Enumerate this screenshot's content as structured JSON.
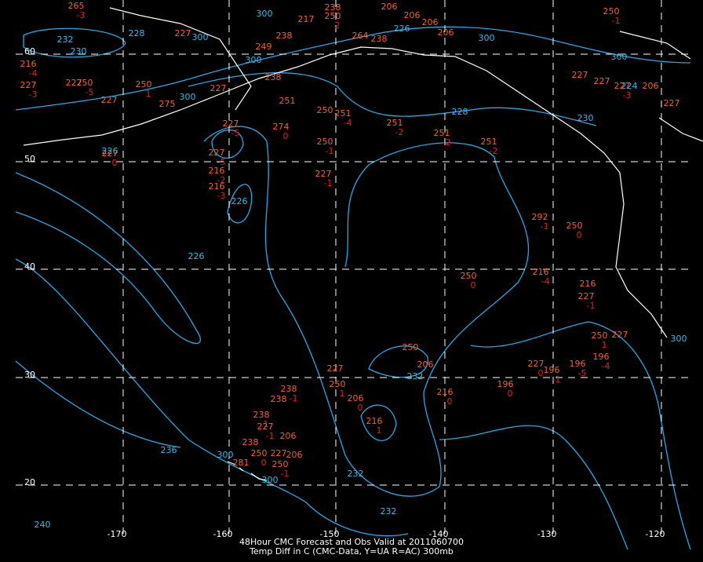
{
  "map": {
    "lon_labels": [
      -170,
      -160,
      -150,
      -140,
      -130,
      -120
    ],
    "lat_labels": [
      60,
      50,
      40,
      30,
      20
    ],
    "contour_labels": [
      232,
      230,
      228,
      226,
      226,
      226,
      228,
      230,
      232,
      232,
      232,
      236,
      240,
      226,
      224,
      300,
      300,
      300,
      300,
      300,
      300,
      300,
      300,
      300
    ],
    "stations": [
      {
        "value": "265",
        "diff": "-3"
      },
      {
        "value": "217"
      },
      {
        "value": "238"
      },
      {
        "value": "250",
        "diff": "2"
      },
      {
        "value": "206"
      },
      {
        "value": "206"
      },
      {
        "value": "206"
      },
      {
        "value": "206"
      },
      {
        "value": "250",
        "diff": "-1"
      },
      {
        "value": "227"
      },
      {
        "value": "238"
      },
      {
        "value": "249"
      },
      {
        "value": "264"
      },
      {
        "value": "238"
      },
      {
        "value": "216",
        "diff": "-4"
      },
      {
        "value": "227",
        "diff": "-3"
      },
      {
        "value": "227"
      },
      {
        "value": "250",
        "diff": "-5"
      },
      {
        "value": "250",
        "diff": "1"
      },
      {
        "value": "227"
      },
      {
        "value": "275"
      },
      {
        "value": "227"
      },
      {
        "value": "238"
      },
      {
        "value": "251"
      },
      {
        "value": "250"
      },
      {
        "value": "251",
        "diff": "-4"
      },
      {
        "value": "251",
        "diff": "-2"
      },
      {
        "value": "251",
        "diff": "-2"
      },
      {
        "value": "251",
        "diff": "-2"
      },
      {
        "value": "227",
        "diff": "-5"
      },
      {
        "value": "274",
        "diff": "0"
      },
      {
        "value": "250",
        "diff": "-1"
      },
      {
        "value": "227",
        "diff": "-1"
      },
      {
        "value": "227",
        "diff": "0"
      },
      {
        "value": "216",
        "diff": "-2"
      },
      {
        "value": "216",
        "diff": "-3"
      },
      {
        "value": "227",
        "diff": "-5"
      },
      {
        "value": "292",
        "diff": "-1"
      },
      {
        "value": "250",
        "diff": "0"
      },
      {
        "value": "250",
        "diff": "0"
      },
      {
        "value": "216",
        "diff": "-4"
      },
      {
        "value": "216"
      },
      {
        "value": "227",
        "diff": "-1"
      },
      {
        "value": "227"
      },
      {
        "value": "227"
      },
      {
        "value": "227",
        "diff": "-3"
      },
      {
        "value": "227"
      },
      {
        "value": "206"
      },
      {
        "value": "250"
      },
      {
        "value": "206"
      },
      {
        "value": "227"
      },
      {
        "value": "250",
        "diff": "1"
      },
      {
        "value": "206",
        "diff": "0"
      },
      {
        "value": "216",
        "diff": "1"
      },
      {
        "value": "216",
        "diff": "0"
      },
      {
        "value": "196",
        "diff": "0"
      },
      {
        "value": "227",
        "diff": "0"
      },
      {
        "value": "196",
        "diff": "-1"
      },
      {
        "value": "196",
        "diff": "-5"
      },
      {
        "value": "196",
        "diff": "-4"
      },
      {
        "value": "227"
      },
      {
        "value": "250",
        "diff": "1"
      },
      {
        "value": "238",
        "diff": "-1"
      },
      {
        "value": "238"
      },
      {
        "value": "238",
        "diff": "1"
      },
      {
        "value": "227",
        "diff": "-1"
      },
      {
        "value": "206"
      },
      {
        "value": "238"
      },
      {
        "value": "250",
        "diff": "0"
      },
      {
        "value": "227"
      },
      {
        "value": "206"
      },
      {
        "value": "250",
        "diff": "-1"
      },
      {
        "value": "281"
      }
    ],
    "title_lines": [
      "48Hour CMC Forecast and Obs Valid at 2011060700",
      "Temp Diff in C (CMC-Data, Y=UA R=AC) 300mb"
    ]
  }
}
